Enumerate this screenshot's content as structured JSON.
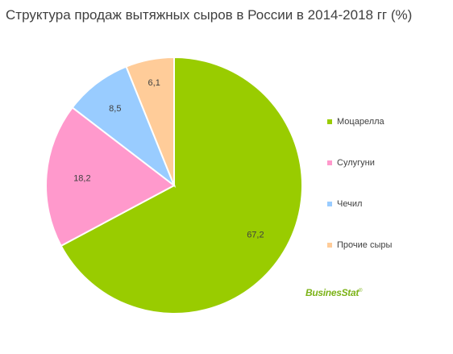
{
  "chart_data": {
    "type": "pie",
    "title": "Структура продаж вытяжных сыров в России в 2014-2018 гг (%)",
    "categories": [
      "Моцарелла",
      "Сулугуни",
      "Чечил",
      "Прочие сыры"
    ],
    "values": [
      67.2,
      18.2,
      8.5,
      6.1
    ],
    "value_labels": [
      "67,2",
      "18,2",
      "8,5",
      "6,1"
    ],
    "colors": [
      "#99cc00",
      "#ff99cc",
      "#99ccff",
      "#ffcc99"
    ],
    "start": "12 o'clock",
    "direction": "clockwise",
    "legend": "right"
  },
  "logo": {
    "text": "BusinesStat",
    "mark": "®"
  }
}
